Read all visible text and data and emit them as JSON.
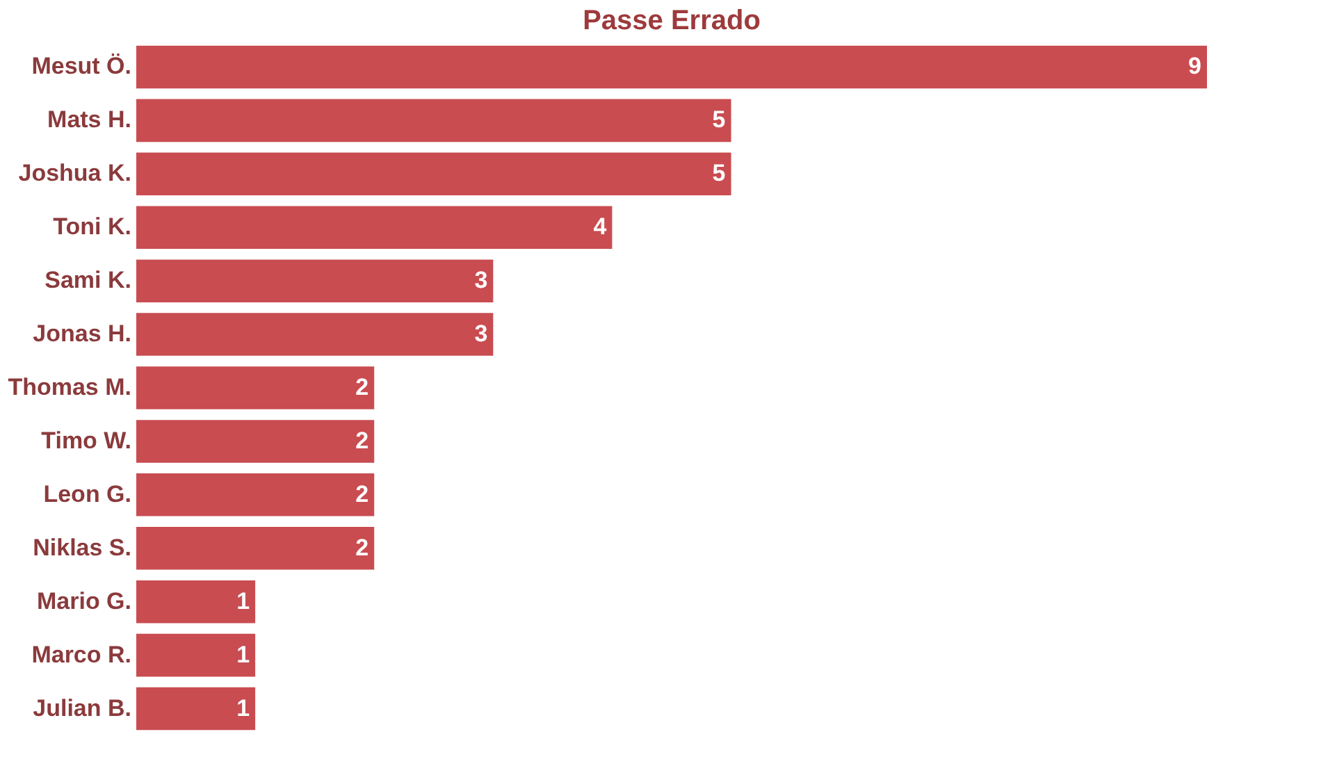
{
  "chart_data": {
    "type": "bar",
    "orientation": "horizontal",
    "title": "Passe Errado",
    "categories": [
      "Mesut Ö.",
      "Mats H.",
      "Joshua K.",
      "Toni K.",
      "Sami K.",
      "Jonas H.",
      "Thomas M.",
      "Timo W.",
      "Leon G.",
      "Niklas S.",
      "Mario G.",
      "Marco R.",
      "Julian B."
    ],
    "values": [
      9,
      5,
      5,
      4,
      3,
      3,
      2,
      2,
      2,
      2,
      1,
      1,
      1
    ],
    "color": "#c94c50",
    "data_labels": true,
    "grid": false,
    "tick_labels": "y"
  }
}
